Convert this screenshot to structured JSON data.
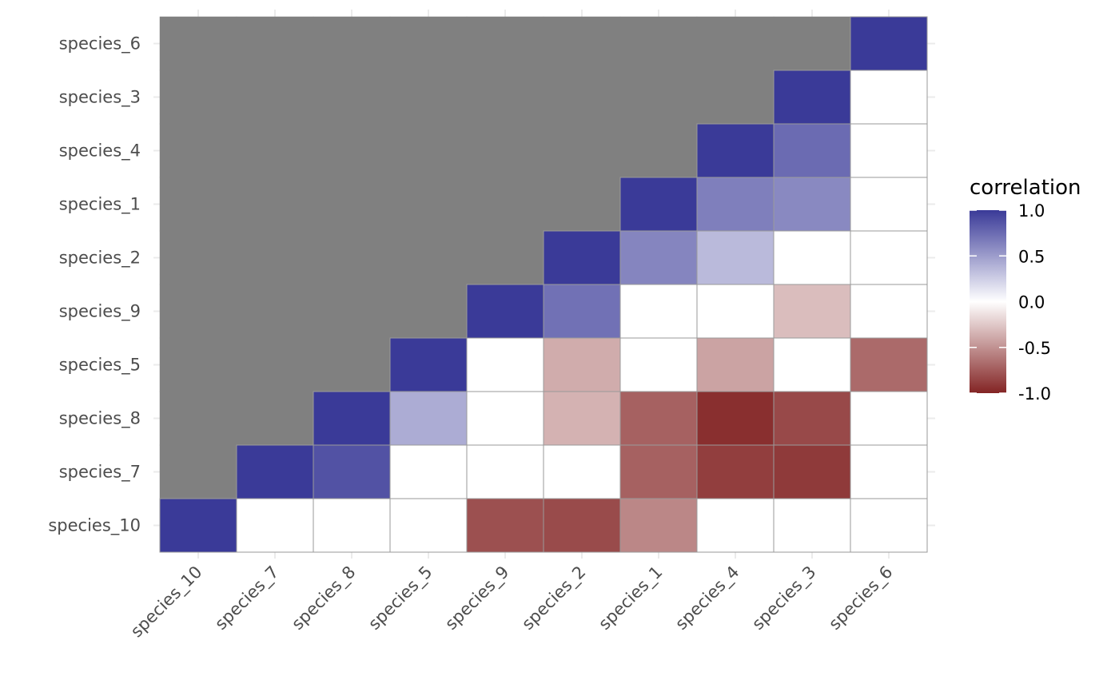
{
  "chart_data": {
    "type": "heatmap",
    "title": "",
    "xlabel": "",
    "ylabel": "",
    "x_categories": [
      "species_10",
      "species_7",
      "species_8",
      "species_5",
      "species_9",
      "species_2",
      "species_1",
      "species_4",
      "species_3",
      "species_6"
    ],
    "y_categories": [
      "species_10",
      "species_7",
      "species_8",
      "species_5",
      "species_9",
      "species_2",
      "species_1",
      "species_4",
      "species_3",
      "species_6"
    ],
    "values": [
      [
        1.0,
        0,
        0,
        0,
        -0.8,
        -0.82,
        -0.55,
        0,
        0,
        0
      ],
      [
        null,
        1.0,
        0.88,
        0,
        0,
        0,
        -0.72,
        -0.88,
        -0.9,
        0
      ],
      [
        null,
        null,
        1.0,
        0.42,
        0,
        -0.35,
        -0.72,
        -0.95,
        -0.83,
        0
      ],
      [
        null,
        null,
        null,
        1.0,
        0,
        -0.38,
        0,
        -0.42,
        0,
        -0.68
      ],
      [
        null,
        null,
        null,
        null,
        1.0,
        0.72,
        0,
        0,
        -0.3,
        0
      ],
      [
        null,
        null,
        null,
        null,
        null,
        1.0,
        0.62,
        0.35,
        0,
        0
      ],
      [
        null,
        null,
        null,
        null,
        null,
        null,
        1.0,
        0.65,
        0.6,
        0
      ],
      [
        null,
        null,
        null,
        null,
        null,
        null,
        null,
        1.0,
        0.75,
        0
      ],
      [
        null,
        null,
        null,
        null,
        null,
        null,
        null,
        null,
        1.0,
        0
      ],
      [
        null,
        null,
        null,
        null,
        null,
        null,
        null,
        null,
        null,
        1.0
      ]
    ],
    "na_color": "#808080",
    "color_scale": {
      "low": "#832424",
      "mid": "#FFFFFF",
      "high": "#3A3A98",
      "limits": [
        -1,
        1
      ]
    },
    "legend": {
      "title": "correlation",
      "breaks": [
        1.0,
        0.5,
        0.0,
        -0.5,
        -1.0
      ],
      "labels": [
        "1.0",
        "0.5",
        "0.0",
        "-0.5",
        "-1.0"
      ],
      "position": "right"
    },
    "grid": true
  }
}
